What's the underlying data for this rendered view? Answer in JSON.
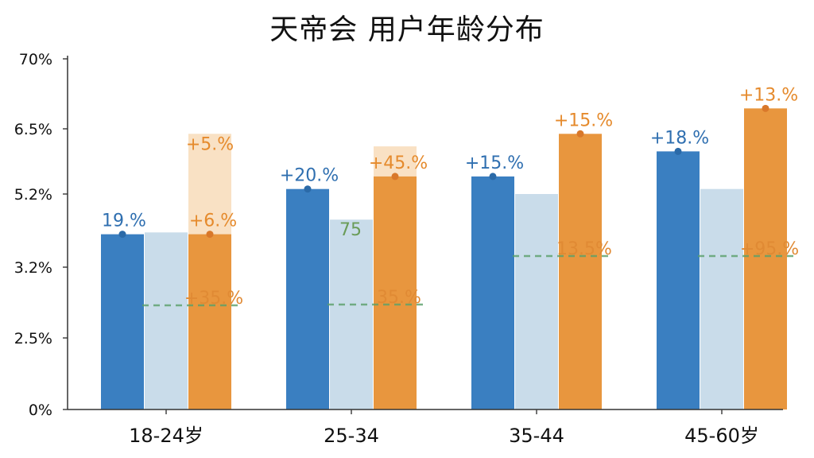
{
  "chart_data": {
    "type": "bar",
    "title": "天帝会 用户年龄分布",
    "xlabel": "",
    "ylabel": "",
    "categories": [
      "18-24岁",
      "25-34",
      "35-44",
      "45-60岁"
    ],
    "y_ticks": [
      "0%",
      "2.5%",
      "3.2%",
      "5.2%",
      "6.5%",
      "70%"
    ],
    "series": [
      {
        "color": "#3a7fc1",
        "values": [
          4.1,
          5.3,
          5.55,
          6.05
        ],
        "labels": [
          "19.%",
          "+20.%",
          "+15.%",
          "+18.%"
        ]
      },
      {
        "color": "#c9dcea",
        "values": [
          4.15,
          4.5,
          5.2,
          5.3
        ],
        "labels": [
          "",
          "",
          "",
          ""
        ]
      },
      {
        "color": "#e8963e",
        "values": [
          4.1,
          5.55,
          6.4,
          6.85
        ],
        "labels": [
          "+6.%",
          "+45.%",
          "+15.%",
          "+13.%"
        ]
      }
    ],
    "orange_extended": {
      "color": "#f4c994",
      "values": [
        6.4,
        6.15,
        0,
        0
      ],
      "labels": [
        "+5.%",
        "",
        "",
        ""
      ]
    },
    "secondary_labels": [
      "+35.%",
      "35.%",
      "13.5%",
      "+95.%"
    ],
    "annotations": [
      "75"
    ],
    "grid": false,
    "legend": "none"
  }
}
